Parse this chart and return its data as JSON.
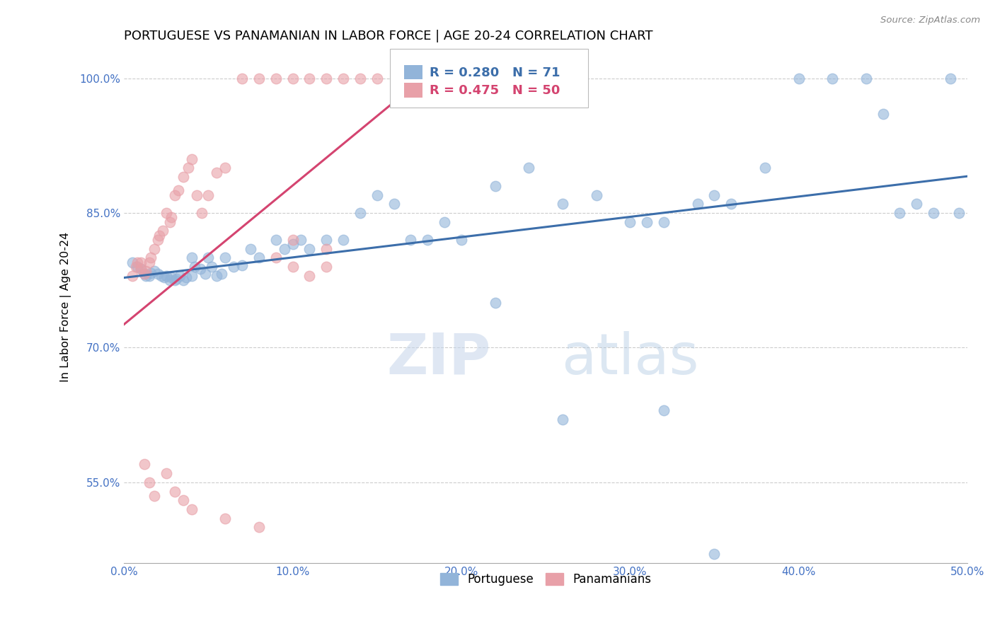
{
  "title": "PORTUGUESE VS PANAMANIAN IN LABOR FORCE | AGE 20-24 CORRELATION CHART",
  "source": "Source: ZipAtlas.com",
  "ylabel": "In Labor Force | Age 20-24",
  "xlim": [
    0.0,
    0.5
  ],
  "ylim": [
    0.46,
    1.03
  ],
  "yticks": [
    0.55,
    0.7,
    0.85,
    1.0
  ],
  "ytick_labels": [
    "55.0%",
    "70.0%",
    "85.0%",
    "100.0%"
  ],
  "xticks": [
    0.0,
    0.1,
    0.2,
    0.3,
    0.4,
    0.5
  ],
  "xtick_labels": [
    "0.0%",
    "10.0%",
    "20.0%",
    "30.0%",
    "40.0%",
    "50.0%"
  ],
  "blue_R": 0.28,
  "blue_N": 71,
  "pink_R": 0.475,
  "pink_N": 50,
  "blue_color": "#92b4d9",
  "pink_color": "#e8a0a8",
  "blue_line_color": "#3c6eaa",
  "pink_line_color": "#d44470",
  "legend_blue_label": "Portuguese",
  "legend_pink_label": "Panamanians",
  "watermark_zip": "ZIP",
  "watermark_atlas": "atlas",
  "title_fontsize": 13,
  "axis_tick_color": "#4472c4",
  "blue_scatter_x": [
    0.005,
    0.008,
    0.01,
    0.012,
    0.013,
    0.015,
    0.016,
    0.018,
    0.02,
    0.022,
    0.024,
    0.025,
    0.027,
    0.028,
    0.03,
    0.031,
    0.033,
    0.035,
    0.037,
    0.04,
    0.04,
    0.042,
    0.045,
    0.048,
    0.05,
    0.052,
    0.055,
    0.058,
    0.06,
    0.065,
    0.07,
    0.075,
    0.08,
    0.09,
    0.095,
    0.1,
    0.105,
    0.11,
    0.12,
    0.13,
    0.14,
    0.15,
    0.16,
    0.17,
    0.18,
    0.19,
    0.2,
    0.22,
    0.24,
    0.26,
    0.28,
    0.3,
    0.31,
    0.32,
    0.34,
    0.35,
    0.36,
    0.38,
    0.4,
    0.42,
    0.44,
    0.45,
    0.46,
    0.47,
    0.48,
    0.49,
    0.495,
    0.32,
    0.22,
    0.26,
    0.35
  ],
  "blue_scatter_y": [
    0.795,
    0.79,
    0.788,
    0.782,
    0.78,
    0.78,
    0.783,
    0.785,
    0.782,
    0.78,
    0.778,
    0.78,
    0.775,
    0.778,
    0.775,
    0.777,
    0.78,
    0.775,
    0.778,
    0.8,
    0.78,
    0.79,
    0.788,
    0.782,
    0.8,
    0.79,
    0.78,
    0.782,
    0.8,
    0.79,
    0.792,
    0.81,
    0.8,
    0.82,
    0.81,
    0.815,
    0.82,
    0.81,
    0.82,
    0.82,
    0.85,
    0.87,
    0.86,
    0.82,
    0.82,
    0.84,
    0.82,
    0.88,
    0.9,
    0.86,
    0.87,
    0.84,
    0.84,
    0.84,
    0.86,
    0.87,
    0.86,
    0.9,
    1.0,
    1.0,
    1.0,
    0.96,
    0.85,
    0.86,
    0.85,
    1.0,
    0.85,
    0.63,
    0.75,
    0.62,
    0.47
  ],
  "pink_scatter_x": [
    0.005,
    0.007,
    0.008,
    0.01,
    0.01,
    0.012,
    0.013,
    0.015,
    0.016,
    0.018,
    0.02,
    0.021,
    0.023,
    0.025,
    0.027,
    0.028,
    0.03,
    0.032,
    0.035,
    0.038,
    0.04,
    0.043,
    0.046,
    0.05,
    0.055,
    0.06,
    0.07,
    0.08,
    0.09,
    0.1,
    0.11,
    0.12,
    0.13,
    0.14,
    0.15,
    0.012,
    0.015,
    0.018,
    0.025,
    0.03,
    0.035,
    0.04,
    0.06,
    0.08,
    0.09,
    0.1,
    0.11,
    0.12,
    0.1,
    0.12
  ],
  "pink_scatter_y": [
    0.78,
    0.79,
    0.795,
    0.795,
    0.788,
    0.782,
    0.785,
    0.795,
    0.8,
    0.81,
    0.82,
    0.825,
    0.83,
    0.85,
    0.84,
    0.845,
    0.87,
    0.875,
    0.89,
    0.9,
    0.91,
    0.87,
    0.85,
    0.87,
    0.895,
    0.9,
    1.0,
    1.0,
    1.0,
    1.0,
    1.0,
    1.0,
    1.0,
    1.0,
    1.0,
    0.57,
    0.55,
    0.535,
    0.56,
    0.54,
    0.53,
    0.52,
    0.51,
    0.5,
    0.8,
    0.79,
    0.78,
    0.79,
    0.82,
    0.81
  ]
}
